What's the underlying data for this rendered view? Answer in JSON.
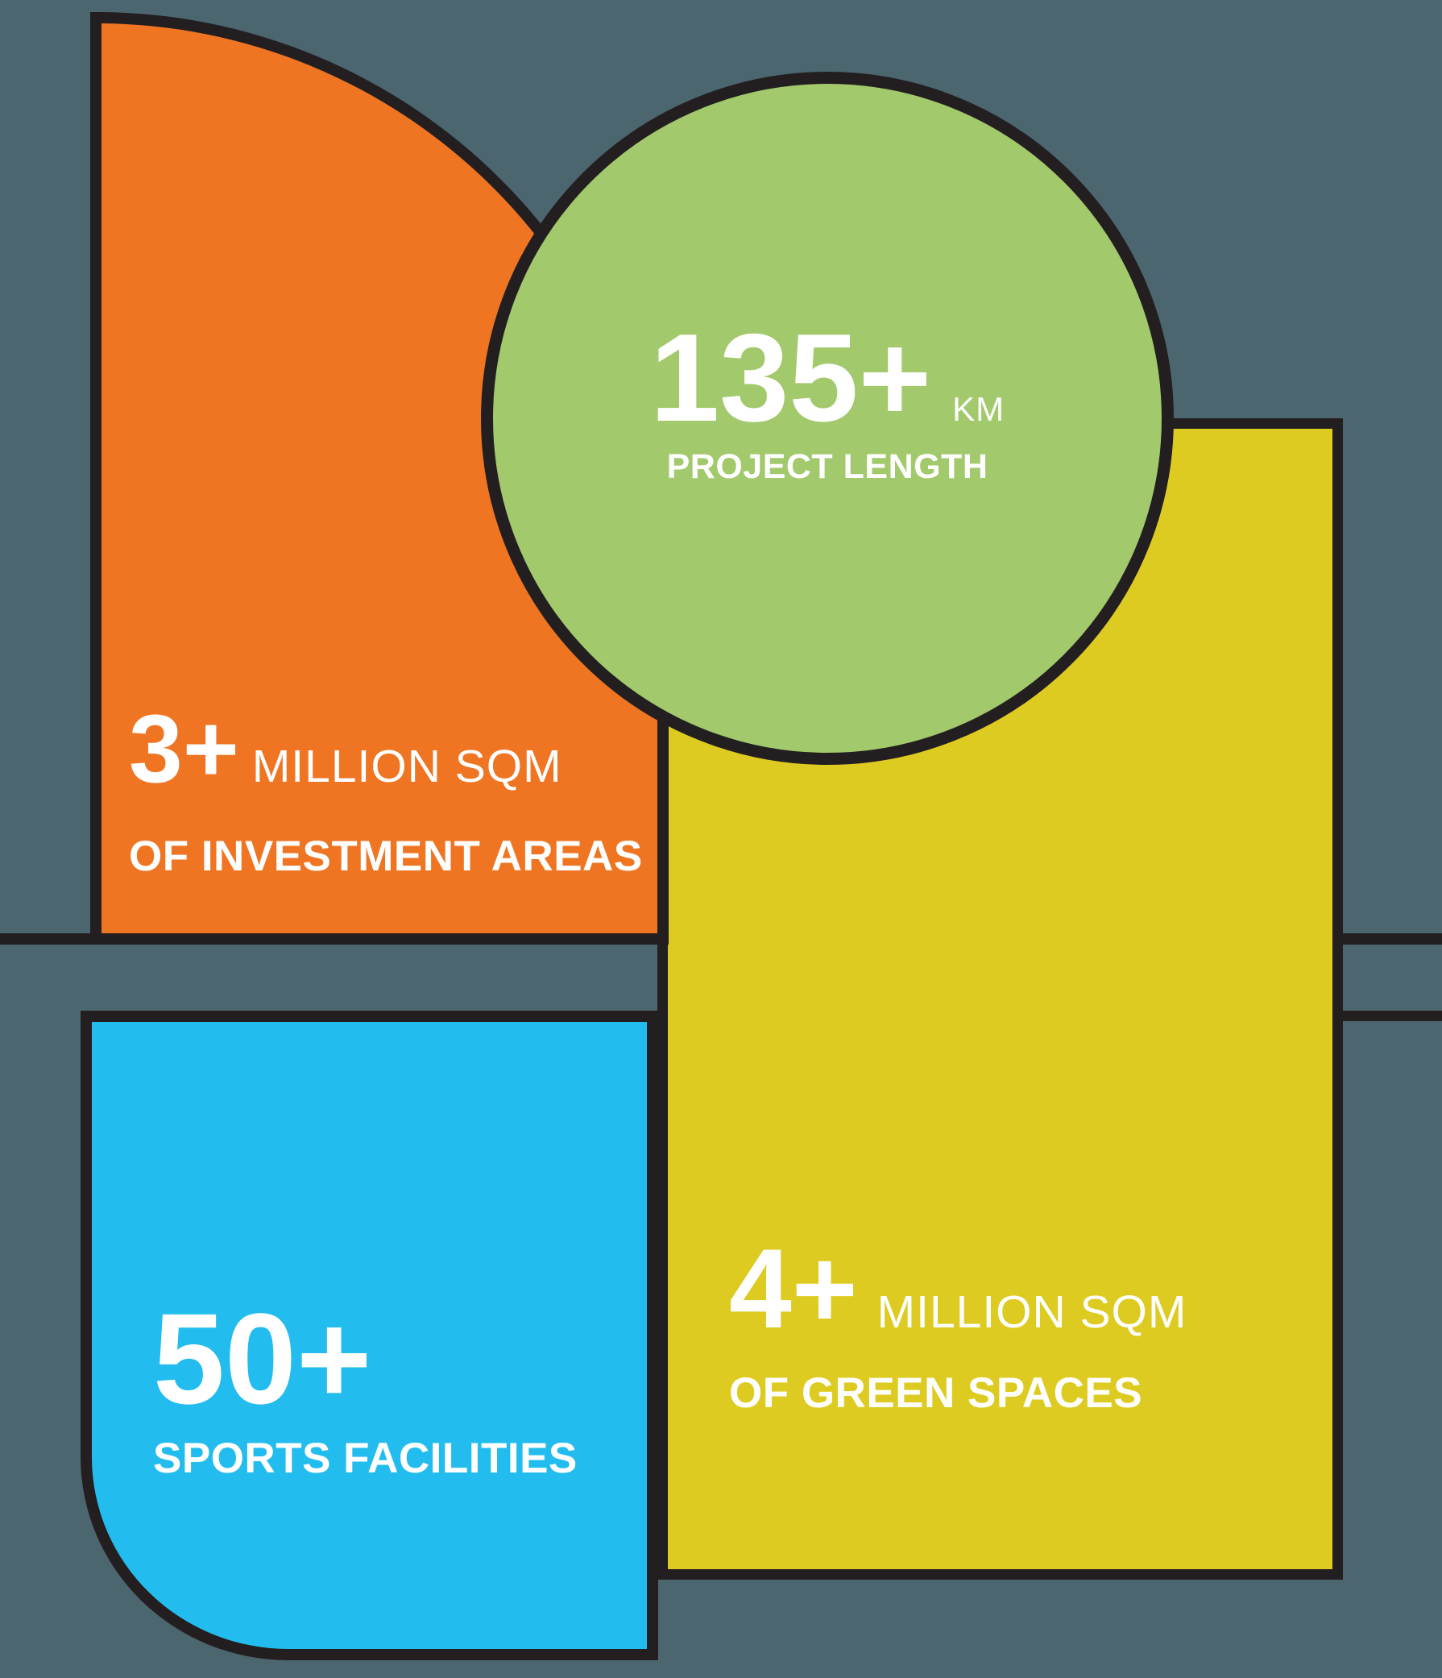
{
  "colors": {
    "background": "#4C6670",
    "outline": "#231F20",
    "orange": "#EF7523",
    "green": "#A2C96C",
    "yellow": "#DECB21",
    "blue": "#22BDEE",
    "text": "#FFFFFF"
  },
  "stats": {
    "project_length": {
      "value": "135+",
      "unit": "KM",
      "label": "PROJECT LENGTH"
    },
    "investment_areas": {
      "value": "3+",
      "unit": "MILLION SQM",
      "label": "OF INVESTMENT AREAS"
    },
    "green_spaces": {
      "value": "4+",
      "unit": "MILLION SQM",
      "label": "OF GREEN SPACES"
    },
    "sports_facilities": {
      "value": "50+",
      "label": "SPORTS FACILITIES"
    }
  }
}
